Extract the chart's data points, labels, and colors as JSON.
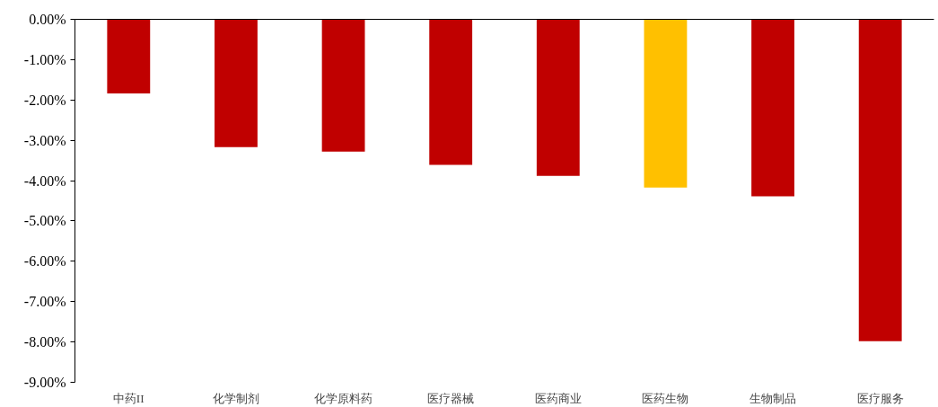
{
  "chart_data": {
    "type": "bar",
    "categories": [
      "中药II",
      "化学制剂",
      "化学原料药",
      "医疗器械",
      "医药商业",
      "医药生物",
      "生物制品",
      "医疗服务"
    ],
    "values": [
      -1.84,
      -3.17,
      -3.28,
      -3.61,
      -3.88,
      -4.17,
      -4.39,
      -7.98
    ],
    "colors": [
      "#c00000",
      "#c00000",
      "#c00000",
      "#c00000",
      "#c00000",
      "#ffc000",
      "#c00000",
      "#c00000"
    ],
    "ylim": [
      -9,
      0
    ],
    "yticks": [
      {
        "value": 0,
        "label": "0.00%"
      },
      {
        "value": -1,
        "label": "-1.00%"
      },
      {
        "value": -2,
        "label": "-2.00%"
      },
      {
        "value": -3,
        "label": "-3.00%"
      },
      {
        "value": -4,
        "label": "-4.00%"
      },
      {
        "value": -5,
        "label": "-5.00%"
      },
      {
        "value": -6,
        "label": "-6.00%"
      },
      {
        "value": -7,
        "label": "-7.00%"
      },
      {
        "value": -8,
        "label": "-8.00%"
      },
      {
        "value": -9,
        "label": "-9.00%"
      }
    ],
    "grid": false
  }
}
